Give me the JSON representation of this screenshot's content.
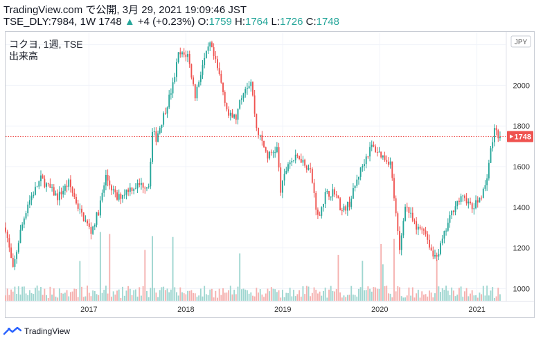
{
  "header": {
    "line1": "TradingView.com で公開, 3月 29, 2021 19:09:46 JST",
    "symbol": "TSE_DLY:7984, 1W 1748",
    "arrow": "▲",
    "change": "+4 (+0.23%)",
    "o_label": "O:",
    "o_value": "1759",
    "h_label": "H:",
    "h_value": "1764",
    "l_label": "L:",
    "l_value": "1726",
    "c_label": "C:",
    "c_value": "1748"
  },
  "legend": {
    "line1": "コクヨ, 1週, TSE",
    "line2": "出来高"
  },
  "footer": {
    "brand": "TradingView"
  },
  "colors": {
    "up": "#26a69a",
    "down": "#ef5350",
    "volume_up": "#9fd6d0",
    "volume_down": "#f5b1af",
    "last_price": "#ef5350"
  },
  "chart_data": {
    "type": "candlestick",
    "currency_label": "JPY",
    "last_price": 1748,
    "y_ticks": [
      1000,
      1200,
      1400,
      1600,
      1800,
      2000,
      2200
    ],
    "ylim": [
      940,
      2260
    ],
    "x_ticks": [
      "2017",
      "2018",
      "2019",
      "2020",
      "2021"
    ],
    "x_tick_dates": [
      "2017-01-01",
      "2018-01-01",
      "2019-01-01",
      "2020-01-01",
      "2021-01-01"
    ],
    "xlim": [
      "2016-02-22",
      "2021-04-19"
    ],
    "anchors": [
      [
        "2016-02-22",
        1300
      ],
      [
        "2016-03-21",
        1090
      ],
      [
        "2016-04-18",
        1280
      ],
      [
        "2016-05-16",
        1420
      ],
      [
        "2016-07-04",
        1540
      ],
      [
        "2016-09-05",
        1450
      ],
      [
        "2016-10-17",
        1520
      ],
      [
        "2016-11-28",
        1380
      ],
      [
        "2017-01-09",
        1280
      ],
      [
        "2017-02-06",
        1380
      ],
      [
        "2017-03-06",
        1550
      ],
      [
        "2017-04-17",
        1440
      ],
      [
        "2017-05-29",
        1490
      ],
      [
        "2017-07-10",
        1510
      ],
      [
        "2017-08-14",
        1510
      ],
      [
        "2017-08-28",
        1770
      ],
      [
        "2017-09-11",
        1740
      ],
      [
        "2017-10-16",
        1880
      ],
      [
        "2017-11-13",
        2000
      ],
      [
        "2017-12-04",
        2150
      ],
      [
        "2018-01-08",
        2150
      ],
      [
        "2018-02-05",
        1950
      ],
      [
        "2018-03-05",
        2100
      ],
      [
        "2018-04-02",
        2200
      ],
      [
        "2018-05-07",
        2050
      ],
      [
        "2018-06-11",
        1850
      ],
      [
        "2018-07-09",
        1840
      ],
      [
        "2018-08-06",
        1980
      ],
      [
        "2018-09-03",
        2020
      ],
      [
        "2018-09-24",
        1790
      ],
      [
        "2018-11-05",
        1650
      ],
      [
        "2018-12-10",
        1690
      ],
      [
        "2018-12-24",
        1480
      ],
      [
        "2019-01-21",
        1620
      ],
      [
        "2019-03-04",
        1650
      ],
      [
        "2019-04-15",
        1580
      ],
      [
        "2019-05-13",
        1350
      ],
      [
        "2019-06-10",
        1460
      ],
      [
        "2019-07-15",
        1480
      ],
      [
        "2019-08-12",
        1380
      ],
      [
        "2019-09-09",
        1420
      ],
      [
        "2019-10-14",
        1560
      ],
      [
        "2019-11-11",
        1650
      ],
      [
        "2019-12-02",
        1700
      ],
      [
        "2020-01-13",
        1650
      ],
      [
        "2020-02-10",
        1620
      ],
      [
        "2020-02-24",
        1450
      ],
      [
        "2020-03-16",
        1180
      ],
      [
        "2020-04-06",
        1420
      ],
      [
        "2020-05-18",
        1290
      ],
      [
        "2020-06-15",
        1300
      ],
      [
        "2020-07-20",
        1160
      ],
      [
        "2020-08-10",
        1180
      ],
      [
        "2020-09-14",
        1320
      ],
      [
        "2020-10-12",
        1420
      ],
      [
        "2020-11-16",
        1450
      ],
      [
        "2020-12-14",
        1390
      ],
      [
        "2021-01-04",
        1430
      ],
      [
        "2021-02-01",
        1500
      ],
      [
        "2021-02-22",
        1680
      ],
      [
        "2021-03-08",
        1780
      ],
      [
        "2021-03-29",
        1748
      ]
    ]
  }
}
